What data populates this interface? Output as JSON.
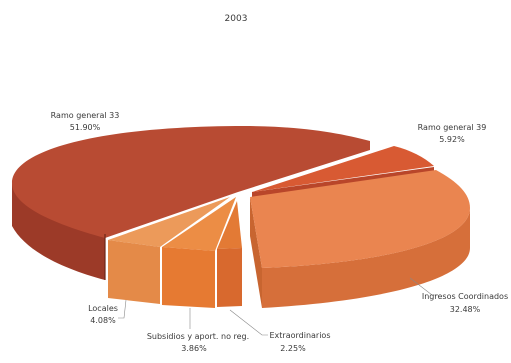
{
  "chart_data": {
    "type": "pie",
    "title": "2003",
    "slices": [
      {
        "label": "Ramo general 33",
        "value_text": "51.90%",
        "value": 51.9,
        "color": "#b84b33"
      },
      {
        "label": "Ramo general 39",
        "value_text": "5.92%",
        "value": 5.92,
        "color": "#d85a33"
      },
      {
        "label": "Ingresos Coordinados",
        "value_text": "32.48%",
        "value": 32.48,
        "color": "#ea8550"
      },
      {
        "label": "Extraordinarios",
        "value_text": "2.25%",
        "value": 2.25,
        "color": "#d8692e"
      },
      {
        "label": "Subsidios y aport. no reg.",
        "value_text": "3.86%",
        "value": 3.86,
        "color": "#e67a32"
      },
      {
        "label": "Locales",
        "value_text": "4.08%",
        "value": 4.08,
        "color": "#e48a48"
      }
    ]
  }
}
